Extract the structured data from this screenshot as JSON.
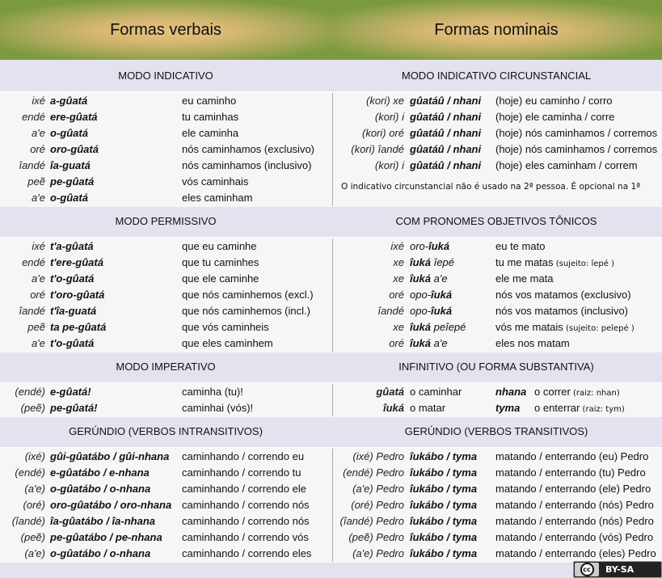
{
  "header": {
    "left_title": "Formas verbais",
    "right_title": "Formas nominais"
  },
  "sections": [
    {
      "left_title": "MODO INDICATIVO",
      "right_title": "MODO INDICATIVO CIRCUNSTANCIAL",
      "left_rows": [
        {
          "p": "ixé",
          "f": "a-gûatá",
          "t": "eu caminho"
        },
        {
          "p": "endé",
          "f": "ere-gûatá",
          "t": "tu caminhas"
        },
        {
          "p": "a'e",
          "f": "o-gûatá",
          "t": "ele caminha"
        },
        {
          "p": "oré",
          "f": "oro-gûatá",
          "t": "nós caminhamos (exclusivo)"
        },
        {
          "p": "îandé",
          "f": "îa-guatá",
          "t": "nós caminhamos (inclusivo)"
        },
        {
          "p": "peẽ",
          "f": "pe-gûatá",
          "t": "vós caminhais"
        },
        {
          "p": "a'e",
          "f": "o-gûatá",
          "t": "eles caminham"
        }
      ],
      "right_rows": [
        {
          "p": "(kori) xe",
          "f": "gûatáû / nhani",
          "t": "(hoje) eu caminho / corro"
        },
        {
          "p": "(kori) i",
          "f": "gûatáû / nhani",
          "t": "(hoje) ele caminha / corre"
        },
        {
          "p": "(kori) oré",
          "f": "gûatáû / nhani",
          "t": "(hoje) nós caminhamos / corremos"
        },
        {
          "p": "(kori) îandé",
          "f": "gûatáû / nhani",
          "t": "(hoje) nós caminhamos / corremos"
        },
        {
          "p": "(kori) i",
          "f": "gûatáû / nhani",
          "t": "(hoje) eles caminham / correm"
        }
      ],
      "right_note": "O indicativo circunstancial não é usado na 2ª pessoa. É opcional na 1ª"
    },
    {
      "left_title": "MODO PERMISSIVO",
      "right_title": "COM PRONOMES OBJETIVOS TÔNICOS",
      "left_rows": [
        {
          "p": "ixé",
          "f": "t'a-gûatá",
          "t": "que eu caminhe"
        },
        {
          "p": "endé",
          "f": "t'ere-gûatá",
          "t": "que tu caminhes"
        },
        {
          "p": "a'e",
          "f": "t'o-gûatá",
          "t": "que ele caminhe"
        },
        {
          "p": "oré",
          "f": "t'oro-gûatá",
          "t": "que nós caminhemos (excl.)"
        },
        {
          "p": "îandé",
          "f": "t'îa-guatá",
          "t": "que nós caminhemos (incl.)"
        },
        {
          "p": "peẽ",
          "f": "ta pe-gûatá",
          "t": "que vós caminheis"
        },
        {
          "p": "a'e",
          "f": "t'o-gûatá",
          "t": "que eles caminhem"
        }
      ],
      "right_rows": [
        {
          "p": "ixé",
          "pre": "oro-",
          "f": "îuká",
          "t": "eu te mato"
        },
        {
          "p": "xe",
          "f": "îuká",
          "post": " îepé",
          "t": "tu me matas",
          "n": " (sujeito: îepé )"
        },
        {
          "p": "xe",
          "f": "îuká",
          "post": " a'e",
          "t": "ele me mata"
        },
        {
          "p": "oré",
          "pre": "opo-",
          "f": "îuká",
          "t": "nós vos matamos (exclusivo)"
        },
        {
          "p": "îandé",
          "pre": "opo-",
          "f": "îuká",
          "t": "nós vos matamos (inclusivo)"
        },
        {
          "p": "xe",
          "f": "îuká",
          "post": " peîepé",
          "t": "vós me matais",
          "n": "  (sujeito: peîepé )"
        },
        {
          "p": "oré",
          "f": "îuká",
          "post": " a'e",
          "t": "eles nos matam"
        }
      ]
    },
    {
      "left_title": "MODO IMPERATIVO",
      "right_title": "INFINITIVO (OU FORMA SUBSTANTIVA)",
      "left_rows": [
        {
          "p": "(endé)",
          "f": "e-gûatá!",
          "t": "caminha (tu)!"
        },
        {
          "p": "(peẽ)",
          "f": "pe-gûatá!",
          "t": "caminhai (vós)!"
        }
      ],
      "right_infinitive": [
        {
          "w1": "gûatá",
          "t1": "o caminhar",
          "w2": "nhana",
          "t2": "o correr",
          "n2": " (raiz: nhan)"
        },
        {
          "w1": "îuká",
          "t1": "o matar",
          "w2": "tyma",
          "t2": "o enterrar",
          "n2": " (raiz: tym)"
        }
      ]
    },
    {
      "left_title": "GERÚNDIO (VERBOS INTRANSITIVOS)",
      "right_title": "GERÚNDIO (VERBOS TRANSITIVOS)",
      "left_rows": [
        {
          "p": "(ixé)",
          "f": "gûi-gûatábo / gûi-nhana",
          "t": "caminhando / correndo eu"
        },
        {
          "p": "(endé)",
          "f": "e-gûatábo / e-nhana",
          "t": "caminhando / correndo tu"
        },
        {
          "p": "(a'e)",
          "f": "o-gûatábo / o-nhana",
          "t": "caminhando / correndo ele"
        },
        {
          "p": "(oré)",
          "f": "oro-gûatábo / oro-nhana",
          "t": "caminhando / correndo nós"
        },
        {
          "p": "(îandé)",
          "f": "îa-gûatábo / îa-nhana",
          "t": "caminhando / correndo nós"
        },
        {
          "p": "(peẽ)",
          "f": "pe-gûatábo / pe-nhana",
          "t": "caminhando / correndo vós"
        },
        {
          "p": "(a'e)",
          "f": "o-gûatábo / o-nhana",
          "t": "caminhando / correndo eles"
        }
      ],
      "right_rows": [
        {
          "p": "(ixé) Pedro",
          "f": "îukábo / tyma",
          "t": "matando / enterrando (eu) Pedro"
        },
        {
          "p": "(endé) Pedro",
          "f": "îukábo / tyma",
          "t": "matando / enterrando (tu) Pedro"
        },
        {
          "p": "(a'e) Pedro",
          "f": "îukábo / tyma",
          "t": "matando / enterrando (ele) Pedro"
        },
        {
          "p": "(oré) Pedro",
          "f": "îukábo / tyma",
          "t": "matando / enterrando (nós) Pedro"
        },
        {
          "p": "(îandé) Pedro",
          "f": "îukábo / tyma",
          "t": "matando / enterrando (nós) Pedro"
        },
        {
          "p": "(peẽ) Pedro",
          "f": "îukábo / tyma",
          "t": "matando / enterrando (vós) Pedro"
        },
        {
          "p": "(a'e) Pedro",
          "f": "îukábo / tyma",
          "t": "matando / enterrando (eles) Pedro"
        }
      ]
    }
  ],
  "license": {
    "label": "BY-SA",
    "icon_text": "cc",
    "icon": "creative-commons-icon"
  }
}
